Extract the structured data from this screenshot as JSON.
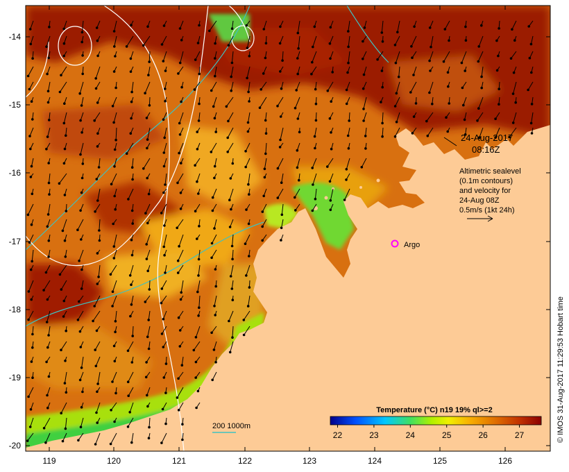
{
  "map": {
    "date": "24-Aug-2017",
    "time": "08:16Z",
    "info_lines": [
      "Altimetric sealevel",
      "(0.1m contours)",
      "and velocity for",
      "24-Aug 08Z",
      "0.5m/s (1kt 24h)"
    ],
    "argo_label": "Argo",
    "depth_legend": "200  1000m",
    "credit": "© IMOS 31-Aug-2017 11:29:53 Hobart time",
    "lat_ticks": [
      "-14",
      "-15",
      "-16",
      "-17",
      "-18",
      "-19",
      "-20"
    ],
    "lon_ticks": [
      "119",
      "120",
      "121",
      "122",
      "123",
      "124",
      "125",
      "126"
    ],
    "colorbar": {
      "title": "Temperature (°C) n19 19% ql>=2",
      "ticks": [
        "22",
        "23",
        "24",
        "25",
        "26",
        "27"
      ],
      "range": [
        21.8,
        27.6
      ],
      "colors": [
        "#00008b",
        "#0050ff",
        "#00c8ff",
        "#40e060",
        "#b0f000",
        "#f0f000",
        "#f8b000",
        "#e07000",
        "#c03000",
        "#8b0000"
      ]
    },
    "colors": {
      "land": "#fdcb96",
      "sea_warm": "#9b1a00",
      "sea_mid": "#d4680a",
      "sea_cool": "#f0a010",
      "sea_green": "#5fd02a",
      "contour_200": "#3fc2c0",
      "contour_white": "#ffffff",
      "argo": "#ff00ff"
    }
  }
}
